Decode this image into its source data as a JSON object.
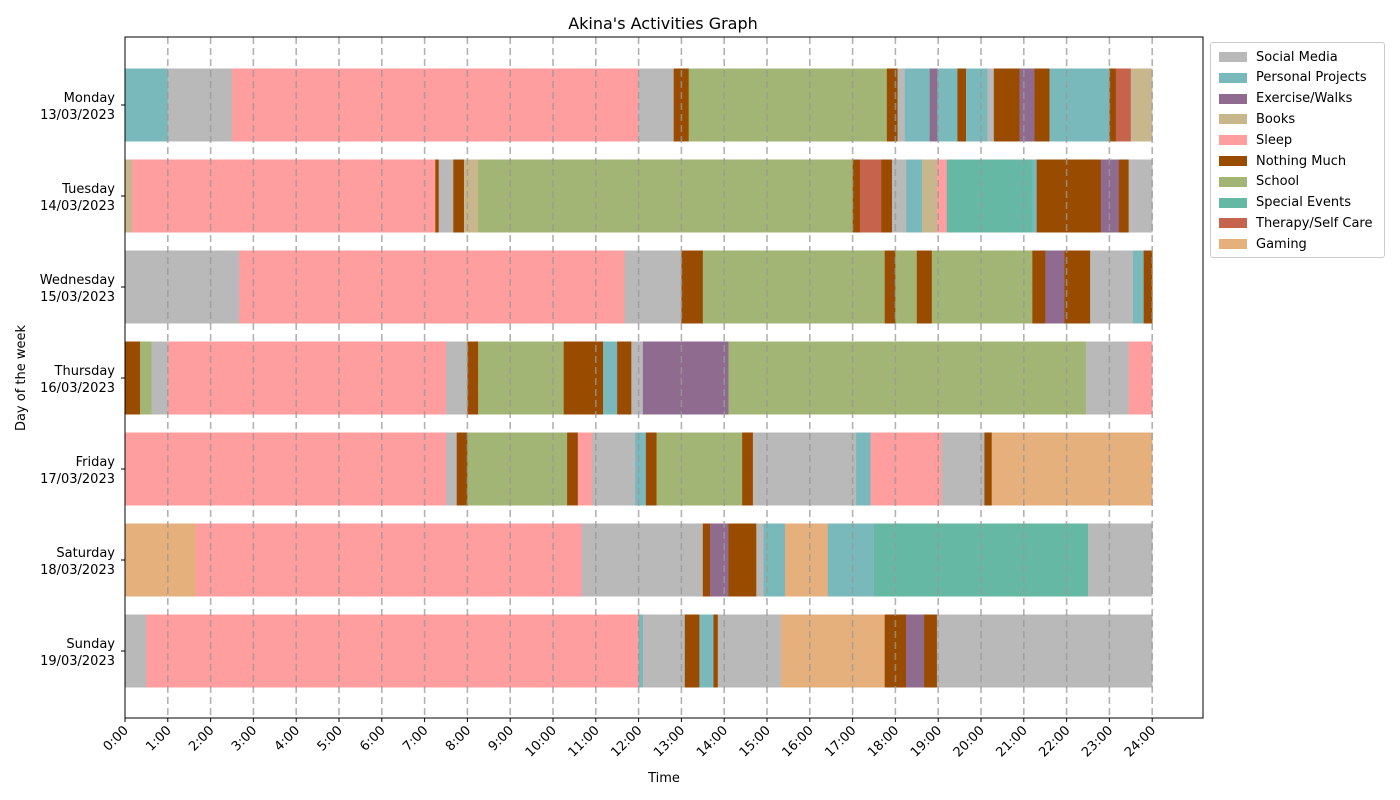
{
  "chart_data": {
    "type": "bar",
    "orientation": "horizontal",
    "title": "Akina's Activities Graph",
    "xlabel": "Time",
    "ylabel": "Day of the week",
    "xlim": [
      0,
      24
    ],
    "x_ticks": [
      "0:00",
      "1:00",
      "2:00",
      "3:00",
      "4:00",
      "5:00",
      "6:00",
      "7:00",
      "8:00",
      "9:00",
      "10:00",
      "11:00",
      "12:00",
      "13:00",
      "14:00",
      "15:00",
      "16:00",
      "17:00",
      "18:00",
      "19:00",
      "20:00",
      "21:00",
      "22:00",
      "23:00",
      "24:00"
    ],
    "grid": "vertical dashed lines at each hour",
    "legend_position": "outside top-right",
    "categories": [
      {
        "name": "Social Media",
        "color": "#b9b9b9"
      },
      {
        "name": "Personal Projects",
        "color": "#7ab9bb"
      },
      {
        "name": "Exercise/Walks",
        "color": "#8f6b8f"
      },
      {
        "name": "Books",
        "color": "#c8b78d"
      },
      {
        "name": "Sleep",
        "color": "#ff9d9f"
      },
      {
        "name": "Nothing Much",
        "color": "#994c00"
      },
      {
        "name": "School",
        "color": "#a3b574"
      },
      {
        "name": "Special Events",
        "color": "#65b9a4"
      },
      {
        "name": "Therapy/Self Care",
        "color": "#c5634d"
      },
      {
        "name": "Gaming",
        "color": "#e6b07c"
      }
    ],
    "days": [
      {
        "day": "Monday",
        "date": "13/03/2023",
        "segments": [
          [
            "Personal Projects",
            0,
            1.0
          ],
          [
            "Social Media",
            1.0,
            2.5
          ],
          [
            "Sleep",
            2.5,
            12.0
          ],
          [
            "Social Media",
            12.0,
            12.82
          ],
          [
            "Nothing Much",
            12.82,
            13.17
          ],
          [
            "School",
            13.17,
            17.8
          ],
          [
            "Nothing Much",
            17.8,
            18.05
          ],
          [
            "Social Media",
            18.05,
            18.22
          ],
          [
            "Personal Projects",
            18.22,
            18.8
          ],
          [
            "Exercise/Walks",
            18.8,
            18.98
          ],
          [
            "Personal Projects",
            18.98,
            19.45
          ],
          [
            "Nothing Much",
            19.45,
            19.65
          ],
          [
            "Personal Projects",
            19.65,
            20.15
          ],
          [
            "Social Media",
            20.15,
            20.3
          ],
          [
            "Nothing Much",
            20.3,
            20.9
          ],
          [
            "Exercise/Walks",
            20.9,
            21.25
          ],
          [
            "Nothing Much",
            21.25,
            21.6
          ],
          [
            "Personal Projects",
            21.6,
            23.0
          ],
          [
            "Nothing Much",
            23.0,
            23.15
          ],
          [
            "Therapy/Self Care",
            23.15,
            23.5
          ],
          [
            "Books",
            23.5,
            24.0
          ]
        ]
      },
      {
        "day": "Tuesday",
        "date": "14/03/2023",
        "segments": [
          [
            "Books",
            0,
            0.17
          ],
          [
            "Sleep",
            0.17,
            7.25
          ],
          [
            "Nothing Much",
            7.25,
            7.33
          ],
          [
            "Social Media",
            7.33,
            7.67
          ],
          [
            "Nothing Much",
            7.67,
            7.92
          ],
          [
            "Books",
            7.92,
            8.25
          ],
          [
            "School",
            8.25,
            17.0
          ],
          [
            "Nothing Much",
            17.0,
            17.17
          ],
          [
            "Therapy/Self Care",
            17.17,
            17.67
          ],
          [
            "Nothing Much",
            17.67,
            17.92
          ],
          [
            "Social Media",
            17.92,
            18.25
          ],
          [
            "Personal Projects",
            18.25,
            18.62
          ],
          [
            "Books",
            18.62,
            18.97
          ],
          [
            "Sleep",
            18.97,
            19.2
          ],
          [
            "Special Events",
            19.2,
            21.2
          ],
          [
            "Personal Projects",
            21.2,
            21.3
          ],
          [
            "Nothing Much",
            21.3,
            22.8
          ],
          [
            "Exercise/Walks",
            22.8,
            23.22
          ],
          [
            "Nothing Much",
            23.22,
            23.45
          ],
          [
            "Social Media",
            23.45,
            24.0
          ]
        ]
      },
      {
        "day": "Wednesday",
        "date": "15/03/2023",
        "segments": [
          [
            "Social Media",
            0,
            2.67
          ],
          [
            "Sleep",
            2.67,
            11.67
          ],
          [
            "Social Media",
            11.67,
            13.0
          ],
          [
            "Nothing Much",
            13.0,
            13.5
          ],
          [
            "School",
            13.5,
            17.75
          ],
          [
            "Nothing Much",
            17.75,
            18.0
          ],
          [
            "School",
            18.0,
            18.5
          ],
          [
            "Nothing Much",
            18.5,
            18.85
          ],
          [
            "School",
            18.85,
            21.2
          ],
          [
            "Nothing Much",
            21.2,
            21.5
          ],
          [
            "Exercise/Walks",
            21.5,
            21.95
          ],
          [
            "Nothing Much",
            21.95,
            22.55
          ],
          [
            "Social Media",
            22.55,
            23.55
          ],
          [
            "Personal Projects",
            23.55,
            23.8
          ],
          [
            "Nothing Much",
            23.8,
            24.0
          ]
        ]
      },
      {
        "day": "Thursday",
        "date": "16/03/2023",
        "segments": [
          [
            "Nothing Much",
            0,
            0.35
          ],
          [
            "School",
            0.35,
            0.62
          ],
          [
            "Social Media",
            0.62,
            1.0
          ],
          [
            "Sleep",
            1.0,
            7.5
          ],
          [
            "Social Media",
            7.5,
            8.0
          ],
          [
            "Nothing Much",
            8.0,
            8.25
          ],
          [
            "School",
            8.25,
            10.25
          ],
          [
            "Nothing Much",
            10.25,
            11.17
          ],
          [
            "Personal Projects",
            11.17,
            11.5
          ],
          [
            "Nothing Much",
            11.5,
            11.83
          ],
          [
            "Social Media",
            11.83,
            12.1
          ],
          [
            "Exercise/Walks",
            12.1,
            14.1
          ],
          [
            "School",
            14.1,
            22.45
          ],
          [
            "Social Media",
            22.45,
            23.45
          ],
          [
            "Sleep",
            23.45,
            24.0
          ]
        ]
      },
      {
        "day": "Friday",
        "date": "17/03/2023",
        "segments": [
          [
            "Sleep",
            0,
            7.5
          ],
          [
            "Social Media",
            7.5,
            7.75
          ],
          [
            "Nothing Much",
            7.75,
            8.0
          ],
          [
            "School",
            8.0,
            10.33
          ],
          [
            "Nothing Much",
            10.33,
            10.58
          ],
          [
            "Sleep",
            10.58,
            10.92
          ],
          [
            "Social Media",
            10.92,
            11.92
          ],
          [
            "Personal Projects",
            11.92,
            12.17
          ],
          [
            "Nothing Much",
            12.17,
            12.42
          ],
          [
            "School",
            12.42,
            14.42
          ],
          [
            "Nothing Much",
            14.42,
            14.67
          ],
          [
            "Social Media",
            14.67,
            17.08
          ],
          [
            "Personal Projects",
            17.08,
            17.42
          ],
          [
            "Sleep",
            17.42,
            19.08
          ],
          [
            "Social Media",
            19.08,
            20.08
          ],
          [
            "Nothing Much",
            20.08,
            20.25
          ],
          [
            "Gaming",
            20.25,
            24.0
          ]
        ]
      },
      {
        "day": "Saturday",
        "date": "18/03/2023",
        "segments": [
          [
            "Gaming",
            0,
            1.65
          ],
          [
            "Sleep",
            1.65,
            10.67
          ],
          [
            "Social Media",
            10.67,
            13.5
          ],
          [
            "Nothing Much",
            13.5,
            13.67
          ],
          [
            "Exercise/Walks",
            13.67,
            14.1
          ],
          [
            "Nothing Much",
            14.1,
            14.75
          ],
          [
            "Social Media",
            14.75,
            14.92
          ],
          [
            "Personal Projects",
            14.92,
            15.42
          ],
          [
            "Gaming",
            15.42,
            16.42
          ],
          [
            "Personal Projects",
            16.42,
            17.5
          ],
          [
            "Special Events",
            17.5,
            22.5
          ],
          [
            "Social Media",
            22.5,
            24.0
          ]
        ]
      },
      {
        "day": "Sunday",
        "date": "19/03/2023",
        "segments": [
          [
            "Social Media",
            0,
            0.5
          ],
          [
            "Sleep",
            0.5,
            12.0
          ],
          [
            "Personal Projects",
            12.0,
            12.1
          ],
          [
            "Social Media",
            12.1,
            13.08
          ],
          [
            "Nothing Much",
            13.08,
            13.42
          ],
          [
            "Personal Projects",
            13.42,
            13.75
          ],
          [
            "Nothing Much",
            13.75,
            13.85
          ],
          [
            "Social Media",
            13.85,
            15.33
          ],
          [
            "Gaming",
            15.33,
            17.75
          ],
          [
            "Nothing Much",
            17.75,
            18.25
          ],
          [
            "Exercise/Walks",
            18.25,
            18.67
          ],
          [
            "Nothing Much",
            18.67,
            18.97
          ],
          [
            "Social Media",
            18.97,
            24.0
          ]
        ]
      }
    ]
  }
}
